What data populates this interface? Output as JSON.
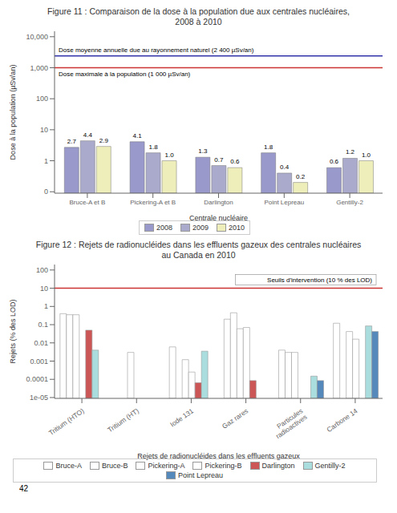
{
  "chart_data": [
    {
      "type": "bar",
      "title": "Figure 11 : Comparaison de la dose à la population due aux centrales nucléaires,\n2008 à 2010",
      "xlabel": "Centrale nucléaire",
      "ylabel": "Dose à la population (µSv/an)",
      "categories": [
        "Bruce-A et B",
        "Pickering-A et B",
        "Darlington",
        "Point Lepreau",
        "Gentilly-2"
      ],
      "series": [
        {
          "name": "2008",
          "color": "#9999CC",
          "values": [
            2.7,
            4.1,
            1.3,
            1.8,
            0.6
          ],
          "value_labels": [
            "2.7",
            "4.1",
            "1.3",
            "1.8",
            "0.6"
          ]
        },
        {
          "name": "2009",
          "color": "#AAAACC",
          "values": [
            4.4,
            1.8,
            0.7,
            0.4,
            1.2
          ],
          "value_labels": [
            "4.4",
            "1.8",
            "0.7",
            "0.4",
            "1.2"
          ]
        },
        {
          "name": "2010",
          "color": "#EEEEBB",
          "values": [
            2.9,
            1.0,
            0.6,
            0.2,
            1.0
          ],
          "value_labels": [
            "2.9",
            "1.0",
            "0.6",
            "0.2",
            "1.0"
          ]
        }
      ],
      "log": "y",
      "ylim": [
        0.09,
        15000
      ],
      "yticks": [
        {
          "value": 0.1,
          "label": "0"
        },
        1,
        10,
        100,
        {
          "value": 1000,
          "label": "1,000"
        },
        {
          "value": 10000,
          "label": "10,000"
        }
      ],
      "grid": false,
      "legend": "bottom",
      "data_labels": true,
      "reference_lines": [
        {
          "value": 2400,
          "color": "#3333AA",
          "label": "Dose moyenne annuelle due au rayonnement naturel (2 400 µSv/an)"
        },
        {
          "value": 1000,
          "color": "#CC3333",
          "label": "Dose maximale à la population (1 000 µSv/an)"
        }
      ]
    },
    {
      "type": "bar",
      "title": "Figure 12 : Rejets de radionucléides dans les effluents gazeux des centrales nucléaires\nau Canada en 2010",
      "xlabel": "Rejets de radionucléides dans les effluents gazeux",
      "ylabel": "Rejets (% des LOD)",
      "categories": [
        "Tritium (HTO)",
        "Tritium (HT)",
        "Iode 131",
        "Gaz rares",
        "Particules\nradioactives",
        "Carbone 14"
      ],
      "series": [
        {
          "name": "Bruce-A",
          "color": "#FFFFFF",
          "values": [
            0.4,
            null,
            0.006,
            0.2,
            0.004,
            0.12
          ]
        },
        {
          "name": "Bruce-B",
          "color": "#FFFFFF",
          "values": [
            0.35,
            null,
            null,
            0.45,
            0.003,
            null
          ]
        },
        {
          "name": "Pickering-A",
          "color": "#FFFFFF",
          "values": [
            0.35,
            0.003,
            0.0012,
            0.06,
            0.003,
            0.042
          ]
        },
        {
          "name": "Pickering-B",
          "color": "#FFFFFF",
          "values": [
            null,
            null,
            0.00025,
            0.07,
            null,
            0.016
          ]
        },
        {
          "name": "Darlington",
          "color": "#CC5555",
          "values": [
            0.05,
            null,
            6.5e-05,
            8.5e-05,
            null,
            null
          ]
        },
        {
          "name": "Gentilly-2",
          "color": "#AADDDD",
          "values": [
            0.004,
            null,
            0.0035,
            null,
            0.00015,
            0.085
          ]
        },
        {
          "name": "Point Lepreau",
          "color": "#5588BB",
          "values": [
            null,
            null,
            null,
            null,
            8.5e-05,
            0.042
          ]
        }
      ],
      "log": "y",
      "ylim": [
        9e-06,
        200.0
      ],
      "yticks": [
        {
          "value": 1e-05,
          "label": "1e-05"
        },
        0.0001,
        0.001,
        0.01,
        0.1,
        1,
        10,
        100
      ],
      "grid": false,
      "legend": "bottom",
      "data_labels": false,
      "reference_lines": [
        {
          "value": 10.0,
          "color": "#CC3333",
          "label": "Seuils d'intervention (10 % des LOD)"
        }
      ],
      "annotations": [
        {
          "text": "42"
        }
      ]
    }
  ]
}
